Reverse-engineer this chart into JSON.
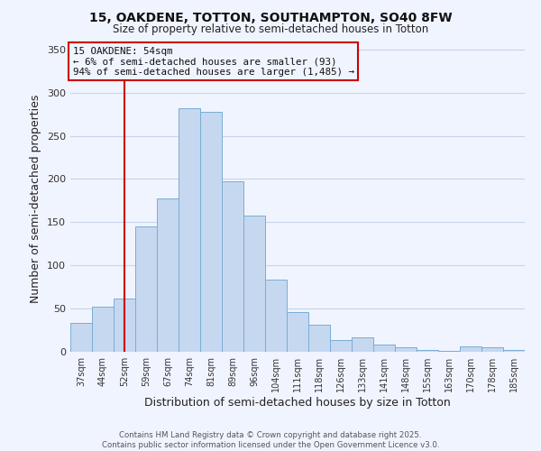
{
  "title_line1": "15, OAKDENE, TOTTON, SOUTHAMPTON, SO40 8FW",
  "title_line2": "Size of property relative to semi-detached houses in Totton",
  "xlabel": "Distribution of semi-detached houses by size in Totton",
  "ylabel": "Number of semi-detached properties",
  "categories": [
    "37sqm",
    "44sqm",
    "52sqm",
    "59sqm",
    "67sqm",
    "74sqm",
    "81sqm",
    "89sqm",
    "96sqm",
    "104sqm",
    "111sqm",
    "118sqm",
    "126sqm",
    "133sqm",
    "141sqm",
    "148sqm",
    "155sqm",
    "163sqm",
    "170sqm",
    "178sqm",
    "185sqm"
  ],
  "values": [
    33,
    52,
    62,
    145,
    178,
    282,
    278,
    197,
    158,
    84,
    46,
    31,
    14,
    17,
    8,
    5,
    2,
    1,
    6,
    5,
    2
  ],
  "bar_color": "#c5d8f0",
  "bar_edge_color": "#7aadd4",
  "vline_x_index": 2,
  "vline_color": "#cc0000",
  "annotation_title": "15 OAKDENE: 54sqm",
  "annotation_line2": "← 6% of semi-detached houses are smaller (93)",
  "annotation_line3": "94% of semi-detached houses are larger (1,485) →",
  "annotation_box_edge_color": "#cc0000",
  "ylim": [
    0,
    355
  ],
  "yticks": [
    0,
    50,
    100,
    150,
    200,
    250,
    300,
    350
  ],
  "footer_line1": "Contains HM Land Registry data © Crown copyright and database right 2025.",
  "footer_line2": "Contains public sector information licensed under the Open Government Licence v3.0.",
  "bg_color": "#f0f4ff",
  "grid_color": "#c8d4e8"
}
